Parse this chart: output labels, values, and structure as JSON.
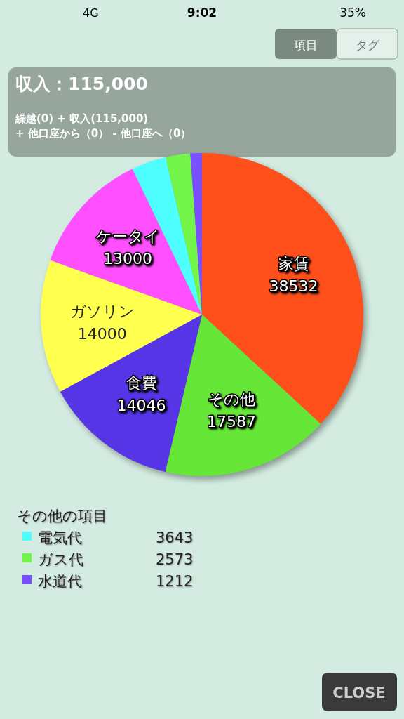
{
  "chart_data": {
    "type": "pie",
    "title": "収入：115,000",
    "subtitle": "繰越(0) + 収入(115,000)\n+ 他口座から（0） - 他口座へ（0）",
    "categories": [
      "家賃",
      "その他",
      "食費",
      "ガソリン",
      "ケータイ",
      "電気代",
      "ガス代",
      "水道代"
    ],
    "values": [
      38532,
      17587,
      14046,
      14000,
      13000,
      3643,
      2573,
      1212
    ],
    "colors": [
      "#ff4f1a",
      "#66e637",
      "#5535e6",
      "#ffff4f",
      "#ff4fff",
      "#4fffff",
      "#74f54a",
      "#7a4fff"
    ],
    "data_labels": true,
    "legend": "bottom left",
    "legend_title": "その他の項目",
    "annotations": [
      "9:02",
      "4G",
      "35%",
      "項目",
      "タグ",
      "CLOSE"
    ]
  }
}
